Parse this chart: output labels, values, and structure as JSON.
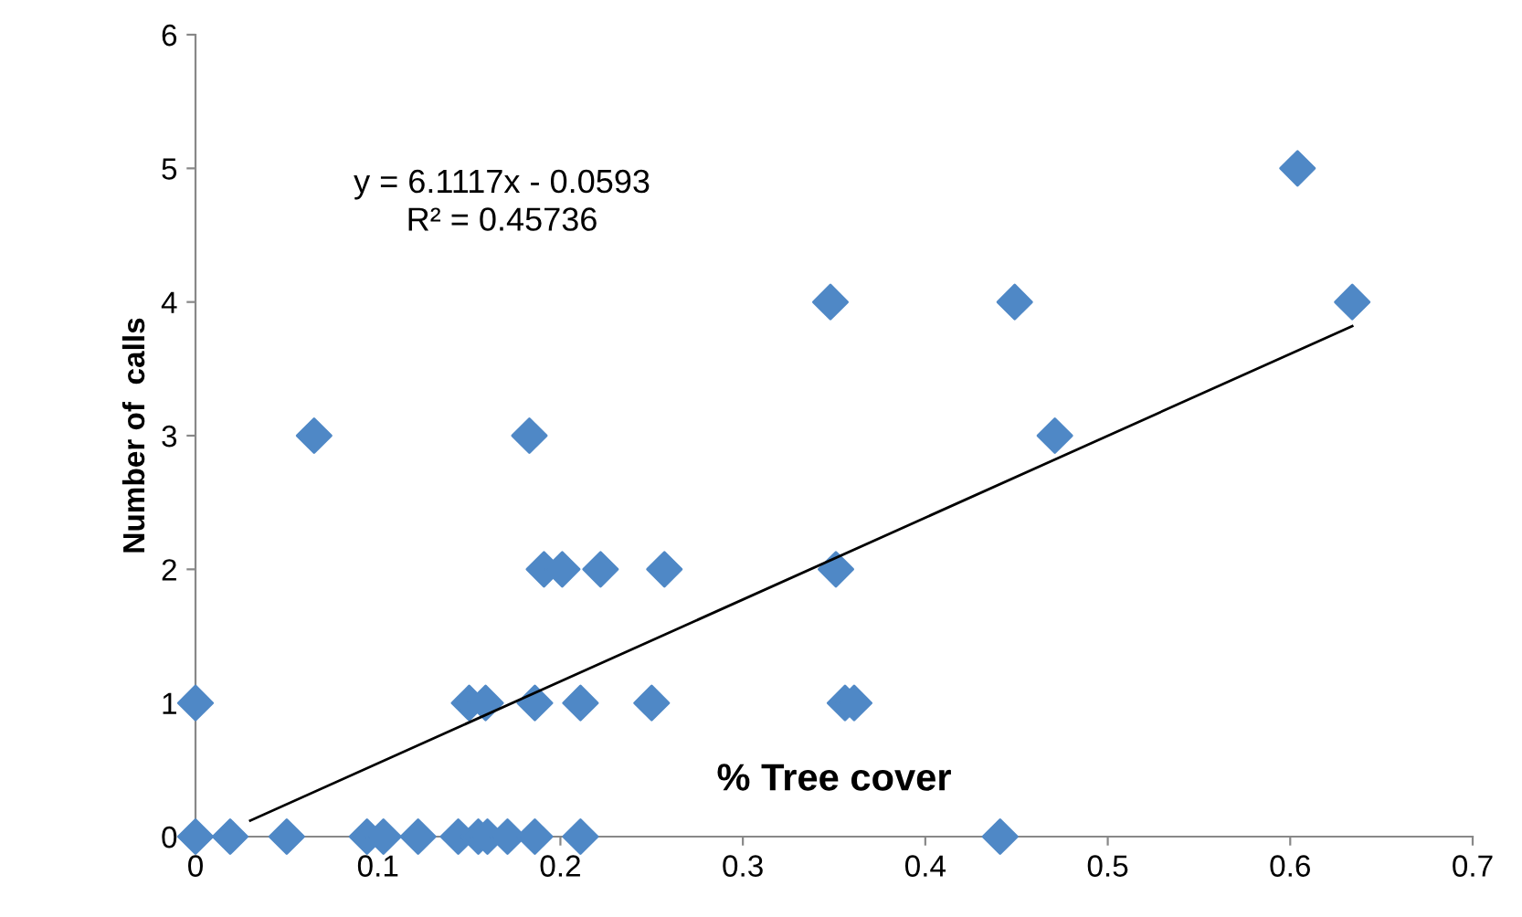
{
  "chart_data": {
    "type": "scatter",
    "xlabel": "% Tree cover",
    "ylabel": "Number of  calls",
    "annotations": [
      "y = 6.1117x - 0.0593\nR² = 0.45736"
    ],
    "xlim": [
      0,
      0.7
    ],
    "xticks": [
      {
        "value": 0,
        "label": "0"
      },
      0.1,
      0.2,
      0.3,
      0.4,
      0.5,
      0.6,
      0.7
    ],
    "ylim": [
      0,
      6
    ],
    "yticks": [
      0,
      1,
      2,
      3,
      4,
      5,
      6
    ],
    "grid": false,
    "legend": false,
    "marker": "diamond",
    "series": [
      {
        "color": "#4f88c6",
        "x": [
          0.0,
          0.019,
          0.05,
          0.094,
          0.103,
          0.122,
          0.144,
          0.155,
          0.16,
          0.171,
          0.186,
          0.211,
          0.441,
          0.0,
          0.15,
          0.159,
          0.186,
          0.211,
          0.25,
          0.356,
          0.361,
          0.191,
          0.201,
          0.222,
          0.257,
          0.351,
          0.065,
          0.183,
          0.471,
          0.348,
          0.449,
          0.634,
          0.604
        ],
        "values": [
          0,
          0,
          0,
          0,
          0,
          0,
          0,
          0,
          0,
          0,
          0,
          0,
          0,
          1,
          1,
          1,
          1,
          1,
          1,
          1,
          1,
          2,
          2,
          2,
          2,
          2,
          3,
          3,
          3,
          4,
          4,
          4,
          5
        ]
      },
      {
        "type": "line",
        "marker": "none",
        "color": "#000000",
        "x": [
          0.03,
          0.634
        ],
        "values": [
          0.12,
          3.82
        ]
      }
    ]
  }
}
